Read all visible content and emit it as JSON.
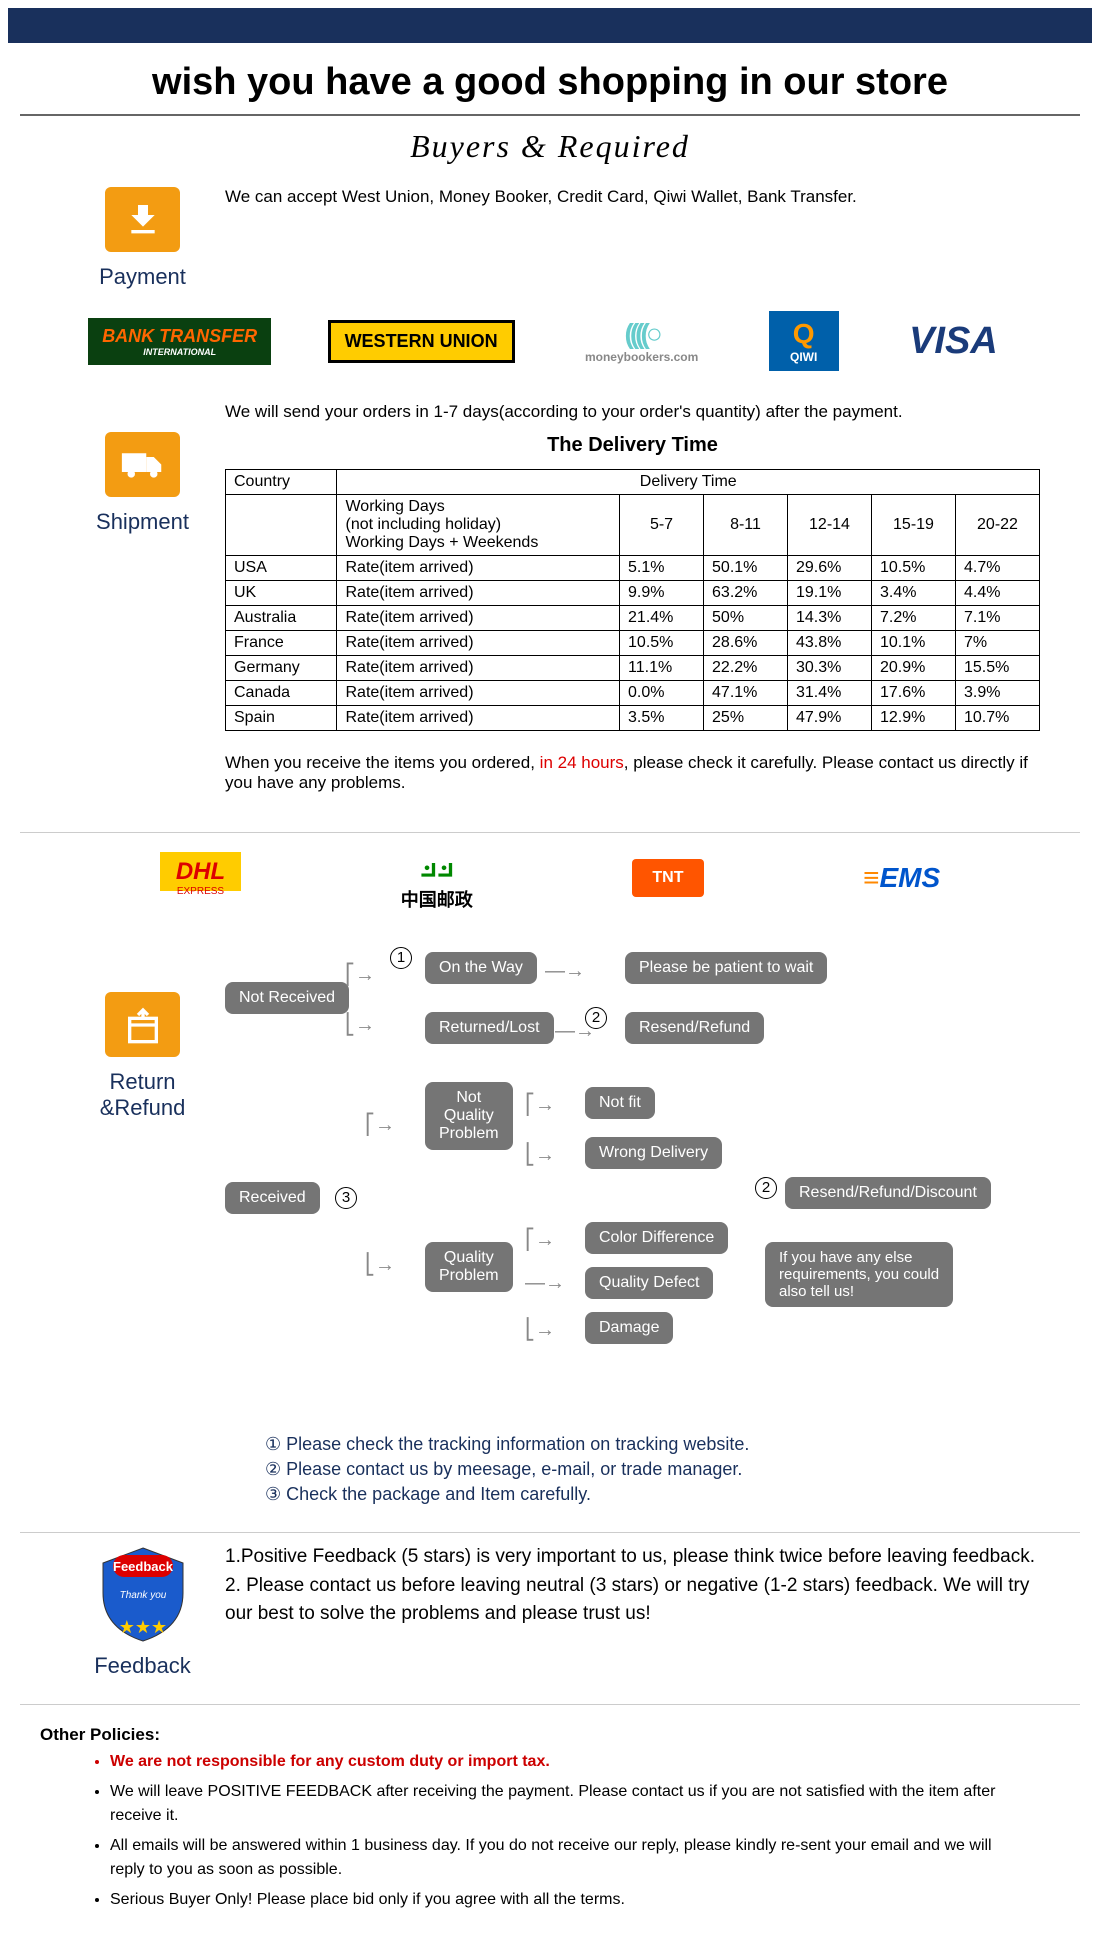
{
  "colors": {
    "topbar": "#19305c",
    "icon_bg": "#f39c12",
    "label": "#19305c",
    "red": "#d00",
    "node": "#757575",
    "note": "#19305c"
  },
  "title": "wish you have a good shopping in our store",
  "subtitle": "Buyers & Required",
  "payment": {
    "label": "Payment",
    "text": "We can accept West Union, Money Booker, Credit Card, Qiwi Wallet, Bank Transfer.",
    "logos": {
      "bank": "BANK TRANSFER",
      "bank_sub": "INTERNATIONAL",
      "western": "WESTERN UNION",
      "mb": "moneybookers.com",
      "qiwi": "QIWI",
      "visa": "VISA"
    }
  },
  "shipment": {
    "label": "Shipment",
    "intro": "We will send your orders in 1-7 days(according to your order's quantity) after the payment.",
    "table_title": "The Delivery Time",
    "col_country": "Country",
    "col_dt": "Delivery Time",
    "header_note": "Working Days\n(not including holiday)\nWorking Days + Weekends",
    "ranges": [
      "5-7",
      "8-11",
      "12-14",
      "15-19",
      "20-22"
    ],
    "row_label": "Rate(item arrived)",
    "rows": [
      {
        "c": "USA",
        "v": [
          "5.1%",
          "50.1%",
          "29.6%",
          "10.5%",
          "4.7%"
        ]
      },
      {
        "c": "UK",
        "v": [
          "9.9%",
          "63.2%",
          "19.1%",
          "3.4%",
          "4.4%"
        ]
      },
      {
        "c": "Australia",
        "v": [
          "21.4%",
          "50%",
          "14.3%",
          "7.2%",
          "7.1%"
        ]
      },
      {
        "c": "France",
        "v": [
          "10.5%",
          "28.6%",
          "43.8%",
          "10.1%",
          "7%"
        ]
      },
      {
        "c": "Germany",
        "v": [
          "11.1%",
          "22.2%",
          "30.3%",
          "20.9%",
          "15.5%"
        ]
      },
      {
        "c": "Canada",
        "v": [
          "0.0%",
          "47.1%",
          "31.4%",
          "17.6%",
          "3.9%"
        ]
      },
      {
        "c": "Spain",
        "v": [
          "3.5%",
          "25%",
          "47.9%",
          "12.9%",
          "10.7%"
        ]
      }
    ],
    "note1": "When you receive the items you ordered, ",
    "note_red": "in 24 hours",
    "note2": ", please check it carefully. Please contact us directly if you have any problems.",
    "carriers": {
      "dhl": "DHL",
      "dhl_sub": "EXPRESS",
      "cp": "中国邮政",
      "tnt": "TNT",
      "ems": "EMS"
    }
  },
  "return": {
    "label": "Return &Refund",
    "nodes": {
      "not_received": "Not Received",
      "on_way": "On the Way",
      "patient": "Please be patient to wait",
      "returned": "Returned/Lost",
      "resend": "Resend/Refund",
      "received": "Received",
      "nqp": "Not\nQuality\nProblem",
      "notfit": "Not fit",
      "wrong": "Wrong Delivery",
      "qp": "Quality\nProblem",
      "color": "Color Difference",
      "defect": "Quality Defect",
      "damage": "Damage",
      "rrd": "Resend/Refund/Discount",
      "tellus": "If you have any else\nrequirements, you could\nalso tell us!"
    },
    "notes": [
      "① Please check the tracking information on tracking website.",
      "② Please contact us by meesage, e-mail, or trade manager.",
      "③ Check the package and Item carefully."
    ]
  },
  "feedback": {
    "label": "Feedback",
    "line1": "1.Positive Feedback (5 stars) is very important to us, please think twice before leaving feedback.",
    "line2": "2. Please contact us before leaving neutral (3 stars) or negative (1-2 stars) feedback. We will try our best to solve the problems and please trust us!"
  },
  "policies": {
    "heading": "Other Policies:",
    "items": [
      {
        "t": "We are not responsible for any custom duty or import tax.",
        "red": true
      },
      {
        "t": "We will leave POSITIVE FEEDBACK after receiving the payment. Please contact us if you are not satisfied with the item after receive it."
      },
      {
        "t": "All emails will be answered within 1 business day. If you do not receive our reply, please kindly re-sent your email and we will reply to you as soon as possible."
      },
      {
        "t": "Serious Buyer Only! Please place bid only if you agree with all the terms."
      }
    ]
  }
}
